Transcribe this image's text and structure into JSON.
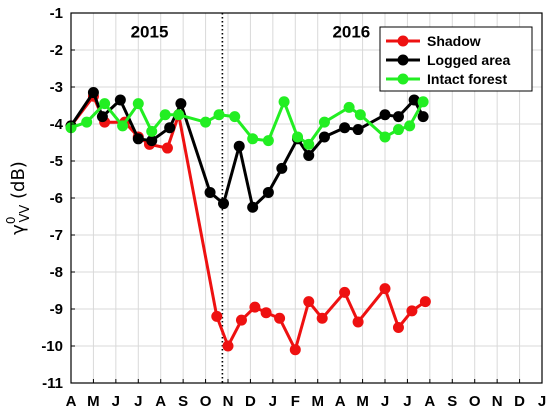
{
  "chart_data": {
    "type": "line",
    "x_ticks": [
      "A",
      "M",
      "J",
      "J",
      "A",
      "S",
      "O",
      "N",
      "D",
      "J",
      "F",
      "M",
      "A",
      "M",
      "J",
      "J",
      "A",
      "S",
      "O",
      "N",
      "D",
      "J"
    ],
    "y_ticks": [
      "-1",
      "-2",
      "-3",
      "-4",
      "-5",
      "-6",
      "-7",
      "-8",
      "-9",
      "-10",
      "-11"
    ],
    "ylim": [
      -11,
      -1
    ],
    "grid": true,
    "ylabel": {
      "symbol": "γ",
      "sup": "0",
      "sub": "VV",
      "unit": " (dB)"
    },
    "annotations": [
      {
        "text": "2015",
        "x": 3.5,
        "y": -1.5
      },
      {
        "text": "2016",
        "x": 12.5,
        "y": -1.5
      }
    ],
    "divider_x": 6.75,
    "legend_position": "top-right",
    "series": [
      {
        "name": "Shadow",
        "color": "#ee1111",
        "points": [
          [
            0,
            -4.05
          ],
          [
            1,
            -3.25
          ],
          [
            1.5,
            -3.95
          ],
          [
            2.4,
            -3.95
          ],
          [
            3,
            -4.35
          ],
          [
            3.5,
            -4.55
          ],
          [
            4.3,
            -4.65
          ],
          [
            4.8,
            -3.75
          ],
          [
            6.5,
            -9.2
          ],
          [
            7,
            -10
          ],
          [
            7.6,
            -9.3
          ],
          [
            8.2,
            -8.95
          ],
          [
            8.7,
            -9.1
          ],
          [
            9.3,
            -9.25
          ],
          [
            10,
            -10.1
          ],
          [
            10.6,
            -8.8
          ],
          [
            11.2,
            -9.25
          ],
          [
            12.2,
            -8.55
          ],
          [
            12.8,
            -9.35
          ],
          [
            14,
            -8.45
          ],
          [
            14.6,
            -9.5
          ],
          [
            15.2,
            -9.05
          ],
          [
            15.8,
            -8.8
          ]
        ]
      },
      {
        "name": "Logged area",
        "color": "#000000",
        "points": [
          [
            0,
            -4.05
          ],
          [
            1,
            -3.15
          ],
          [
            1.4,
            -3.8
          ],
          [
            2.2,
            -3.35
          ],
          [
            3,
            -4.4
          ],
          [
            3.6,
            -4.45
          ],
          [
            4.4,
            -4.1
          ],
          [
            4.9,
            -3.45
          ],
          [
            6.2,
            -5.85
          ],
          [
            6.8,
            -6.15
          ],
          [
            7.5,
            -4.6
          ],
          [
            8.1,
            -6.25
          ],
          [
            8.8,
            -5.85
          ],
          [
            9.4,
            -5.2
          ],
          [
            10.1,
            -4.4
          ],
          [
            10.6,
            -4.85
          ],
          [
            11.3,
            -4.35
          ],
          [
            12.2,
            -4.1
          ],
          [
            12.8,
            -4.15
          ],
          [
            14,
            -3.75
          ],
          [
            14.6,
            -3.8
          ],
          [
            15.3,
            -3.35
          ],
          [
            15.7,
            -3.8
          ]
        ]
      },
      {
        "name": "Intact forest",
        "color": "#22ee22",
        "points": [
          [
            0,
            -4.1
          ],
          [
            0.7,
            -3.95
          ],
          [
            1.5,
            -3.45
          ],
          [
            2.3,
            -4.05
          ],
          [
            3,
            -3.45
          ],
          [
            3.6,
            -4.2
          ],
          [
            4.2,
            -3.75
          ],
          [
            4.8,
            -3.75
          ],
          [
            6,
            -3.95
          ],
          [
            6.6,
            -3.75
          ],
          [
            7.3,
            -3.8
          ],
          [
            8.1,
            -4.4
          ],
          [
            8.8,
            -4.45
          ],
          [
            9.5,
            -3.4
          ],
          [
            10.1,
            -4.35
          ],
          [
            10.6,
            -4.55
          ],
          [
            11.3,
            -3.95
          ],
          [
            12.4,
            -3.55
          ],
          [
            12.9,
            -3.75
          ],
          [
            14,
            -4.35
          ],
          [
            14.6,
            -4.15
          ],
          [
            15.1,
            -4.05
          ],
          [
            15.7,
            -3.4
          ]
        ]
      }
    ]
  }
}
